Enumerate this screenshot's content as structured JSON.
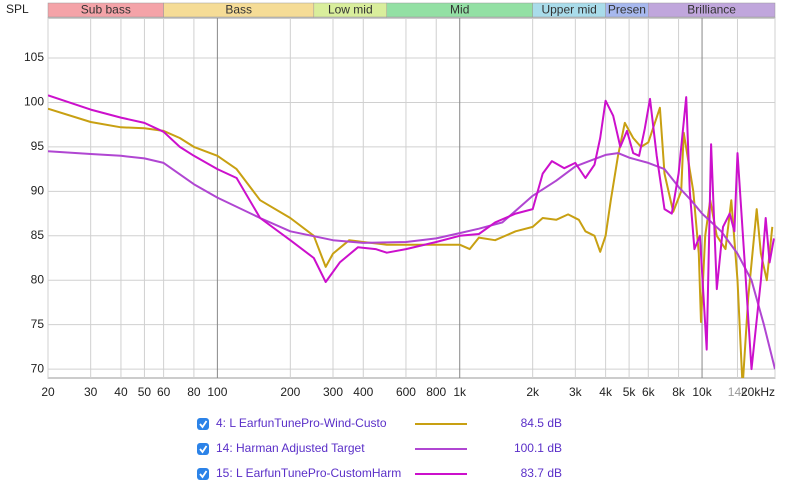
{
  "chart_data": {
    "type": "line",
    "y_label": "SPL",
    "log_x": true,
    "grid": true,
    "xlim": [
      20,
      20000
    ],
    "ylim": [
      69,
      109.5
    ],
    "yticks": [
      70,
      75,
      80,
      85,
      90,
      95,
      100,
      105
    ],
    "xticks": [
      20,
      30,
      40,
      50,
      60,
      80,
      100,
      200,
      300,
      400,
      600,
      800,
      {
        "value": 1000,
        "label": "1k"
      },
      {
        "value": 2000,
        "label": "2k"
      },
      {
        "value": 3000,
        "label": "3k"
      },
      {
        "value": 4000,
        "label": "4k"
      },
      {
        "value": 5000,
        "label": "5k"
      },
      {
        "value": 6000,
        "label": "6k"
      },
      {
        "value": 8000,
        "label": "8k"
      },
      {
        "value": 10000,
        "label": "10k"
      },
      {
        "value": 14000,
        "label": "14k"
      },
      {
        "value": 20000,
        "label": "20kHz"
      }
    ],
    "bands": [
      {
        "label": "Sub bass",
        "from": 20,
        "to": 60,
        "color": "#f4a3a8"
      },
      {
        "label": "Bass",
        "from": 60,
        "to": 250,
        "color": "#f5dc96"
      },
      {
        "label": "Low mid",
        "from": 250,
        "to": 500,
        "color": "#d9ee9c"
      },
      {
        "label": "Mid",
        "from": 500,
        "to": 2000,
        "color": "#93e0a4"
      },
      {
        "label": "Upper mid",
        "from": 2000,
        "to": 4000,
        "color": "#a9dcea"
      },
      {
        "label": "Presen",
        "from": 4000,
        "to": 6000,
        "color": "#a7b8ee"
      },
      {
        "label": "Brilliance",
        "from": 6000,
        "to": 20000,
        "color": "#c0a6dc"
      }
    ],
    "series": [
      {
        "name": "4: L EarfunTunePro-Wind-Custo",
        "color": "#c8a012",
        "level": {
          "value": 84.5,
          "label": "84.5 dB"
        },
        "x": [
          20,
          30,
          40,
          50,
          60,
          70,
          80,
          100,
          120,
          150,
          200,
          250,
          280,
          300,
          350,
          400,
          500,
          700,
          1000,
          1100,
          1200,
          1400,
          1700,
          2000,
          2200,
          2500,
          2800,
          3100,
          3300,
          3600,
          3800,
          4000,
          4200,
          4500,
          4800,
          5200,
          5600,
          6000,
          6700,
          7000,
          7600,
          8200,
          8400,
          9200,
          9700,
          9900,
          10300,
          10800,
          11500,
          12500,
          13200,
          14000,
          14700,
          15500,
          16800,
          17500,
          18500,
          19500
        ],
        "values": [
          99.3,
          97.8,
          97.2,
          97.1,
          96.8,
          96.0,
          95.0,
          94.0,
          92.5,
          89.0,
          87.0,
          85.0,
          81.5,
          83.0,
          84.5,
          84.3,
          84.0,
          84.0,
          84.0,
          83.5,
          84.8,
          84.5,
          85.5,
          86.0,
          87.0,
          86.8,
          87.4,
          86.8,
          85.5,
          85.0,
          83.2,
          85.0,
          89.0,
          94.0,
          97.7,
          96.0,
          95.0,
          95.5,
          99.4,
          92.0,
          87.7,
          90.0,
          96.6,
          90.0,
          83.0,
          75.3,
          85.0,
          89.0,
          85.0,
          83.5,
          89.0,
          80.0,
          68.0,
          78.0,
          88.0,
          83.0,
          80.0,
          86.0
        ]
      },
      {
        "name": "14: Harman Adjusted Target",
        "color": "#b046d2",
        "level": {
          "value": 100.1,
          "label": "100.1 dB"
        },
        "x": [
          20,
          30,
          40,
          50,
          60,
          80,
          100,
          150,
          200,
          300,
          400,
          600,
          800,
          1000,
          1200,
          1500,
          2000,
          2500,
          3000,
          3500,
          4000,
          4500,
          5000,
          6000,
          7000,
          8000,
          9000,
          10000,
          12000,
          14000,
          16000,
          18000,
          20000
        ],
        "values": [
          94.5,
          94.2,
          94.0,
          93.7,
          93.2,
          90.8,
          89.3,
          87.0,
          85.5,
          84.5,
          84.2,
          84.3,
          84.7,
          85.3,
          85.8,
          86.5,
          89.5,
          91.2,
          92.8,
          93.5,
          94.1,
          94.3,
          93.8,
          93.2,
          92.5,
          90.5,
          89.0,
          87.5,
          85.5,
          83.0,
          80.0,
          75.0,
          70.0
        ]
      },
      {
        "name": "15: L EarfunTunePro-CustomHarm",
        "color": "#cc10cc",
        "level": {
          "value": 83.7,
          "label": "83.7 dB"
        },
        "x": [
          20,
          30,
          40,
          50,
          60,
          70,
          80,
          100,
          120,
          150,
          200,
          250,
          280,
          320,
          380,
          450,
          500,
          600,
          800,
          1000,
          1200,
          1400,
          1700,
          2000,
          2200,
          2400,
          2700,
          3000,
          3300,
          3600,
          3800,
          4000,
          4300,
          4600,
          4900,
          5200,
          5500,
          5800,
          6100,
          6500,
          7000,
          7500,
          8000,
          8600,
          8900,
          9300,
          9800,
          10450,
          10900,
          11500,
          12200,
          13000,
          13600,
          14000,
          15000,
          16000,
          17500,
          18300,
          19000,
          19800
        ],
        "values": [
          100.8,
          99.2,
          98.3,
          97.7,
          96.7,
          95.0,
          94.0,
          92.5,
          91.5,
          87.0,
          84.5,
          82.5,
          79.8,
          82.0,
          83.7,
          83.5,
          83.1,
          83.5,
          84.3,
          85.0,
          85.2,
          86.5,
          87.5,
          88.0,
          92.0,
          93.4,
          92.6,
          93.2,
          91.5,
          93.0,
          96.0,
          100.2,
          98.5,
          95.0,
          96.8,
          94.3,
          94.0,
          97.0,
          100.4,
          94.0,
          88.0,
          87.5,
          92.0,
          100.6,
          90.0,
          83.5,
          85.0,
          72.2,
          95.3,
          79.0,
          86.0,
          87.5,
          85.5,
          94.3,
          82.0,
          70.0,
          80.0,
          87.0,
          82.0,
          84.7
        ]
      }
    ]
  }
}
